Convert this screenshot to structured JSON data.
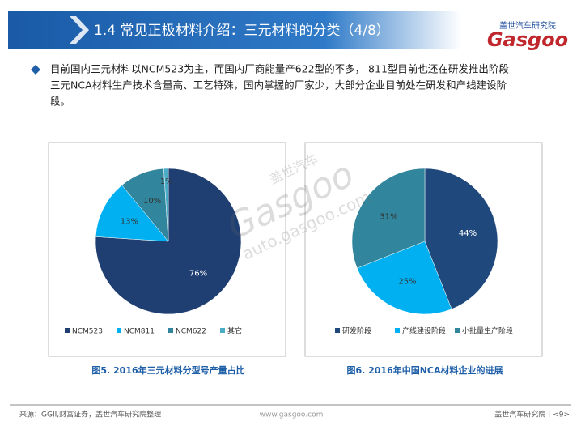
{
  "header": {
    "title": "1.4 常见正极材料介绍：三元材料的分类（4/8）"
  },
  "logo": {
    "brand": "Gasgoo",
    "sub": "盖世汽车研究院"
  },
  "body": {
    "lines": [
      "目前国内三元材料以NCM523为主，而国内厂商能量产622型的不多， 811型目前也还在研发推出阶段",
      "三元NCA材料生产技术含量高、工艺特殊，国内掌握的厂家少，大部分企业目前处在研发和产线建设阶",
      "段。"
    ]
  },
  "watermark": {
    "brand": "Gasgoo",
    "cn": "盖世汽车",
    "url": "auto.gasgoo.com"
  },
  "chart_data": [
    {
      "type": "pie",
      "title": "图5. 2016年三元材料分型号产量占比",
      "categories": [
        "NCM523",
        "NCM811",
        "NCM622",
        "其它"
      ],
      "values": [
        76,
        13,
        10,
        1
      ],
      "value_labels": [
        "76%",
        "13%",
        "10%",
        "1%"
      ],
      "colors": [
        "#1f3f73",
        "#00b0f0",
        "#31859c",
        "#4bacc6"
      ]
    },
    {
      "type": "pie",
      "title": "图6. 2016年中国NCA材料企业的进展",
      "categories": [
        "研发阶段",
        "产线建设阶段",
        "小批量生产阶段"
      ],
      "values": [
        44,
        25,
        31
      ],
      "value_labels": [
        "44%",
        "25%",
        "31%"
      ],
      "colors": [
        "#1f497d",
        "#00b0f0",
        "#31859c"
      ]
    }
  ],
  "footer": {
    "source": "来源：GGII,财富证券，盖世汽车研究院整理",
    "site": "www.gasgoo.com",
    "page": "盖世汽车研究院丨<9>"
  }
}
